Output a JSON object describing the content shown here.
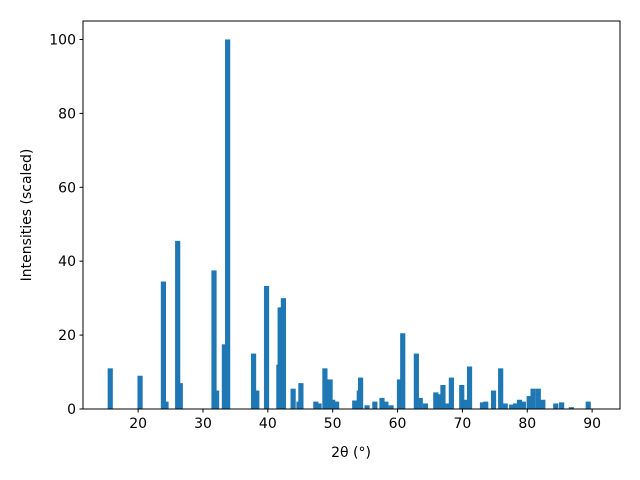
{
  "chart_data": {
    "type": "bar",
    "x_label": "2θ (°)",
    "y_label": "Intensities (scaled)",
    "color": "#1f77b4",
    "x": [
      15.7,
      20.3,
      23.9,
      24.3,
      26.1,
      26.5,
      31.7,
      32.1,
      33.3,
      33.8,
      37.8,
      38.3,
      39.8,
      41.7,
      41.9,
      42.4,
      43.9,
      44.8,
      45.1,
      47.4,
      47.9,
      48.8,
      49.6,
      50.0,
      50.6,
      53.4,
      54.1,
      54.3,
      55.3,
      56.5,
      57.6,
      58.2,
      59.0,
      60.3,
      60.8,
      62.9,
      63.5,
      64.3,
      65.9,
      66.5,
      67.0,
      67.7,
      68.3,
      69.9,
      70.5,
      71.1,
      73.1,
      73.6,
      74.8,
      75.9,
      76.6,
      77.6,
      78.2,
      78.8,
      79.4,
      80.3,
      80.9,
      81.7,
      82.4,
      84.4,
      85.3,
      86.8,
      89.4
    ],
    "values": [
      11,
      9,
      34.5,
      2,
      45.5,
      7,
      37.5,
      5,
      17.5,
      100,
      15,
      5,
      33.3,
      12,
      27.5,
      30,
      5.5,
      2,
      7,
      2,
      1.5,
      11,
      8,
      2.5,
      2,
      2.3,
      5,
      8.5,
      1,
      2,
      3,
      2,
      1,
      8,
      20.5,
      15,
      3,
      1.5,
      4.5,
      4,
      6.5,
      1.5,
      8.5,
      6.5,
      2.5,
      11.5,
      1.8,
      2,
      5,
      11,
      1.5,
      1.2,
      1.5,
      2.5,
      2,
      3.5,
      5.5,
      5.5,
      2.5,
      1.5,
      1.8,
      0.5,
      2
    ],
    "xlim": [
      11.5,
      94.3
    ],
    "ylim": [
      0,
      105
    ],
    "xticks": [
      20,
      30,
      40,
      50,
      60,
      70,
      80,
      90
    ],
    "yticks": [
      0,
      20,
      40,
      60,
      80,
      100
    ]
  }
}
